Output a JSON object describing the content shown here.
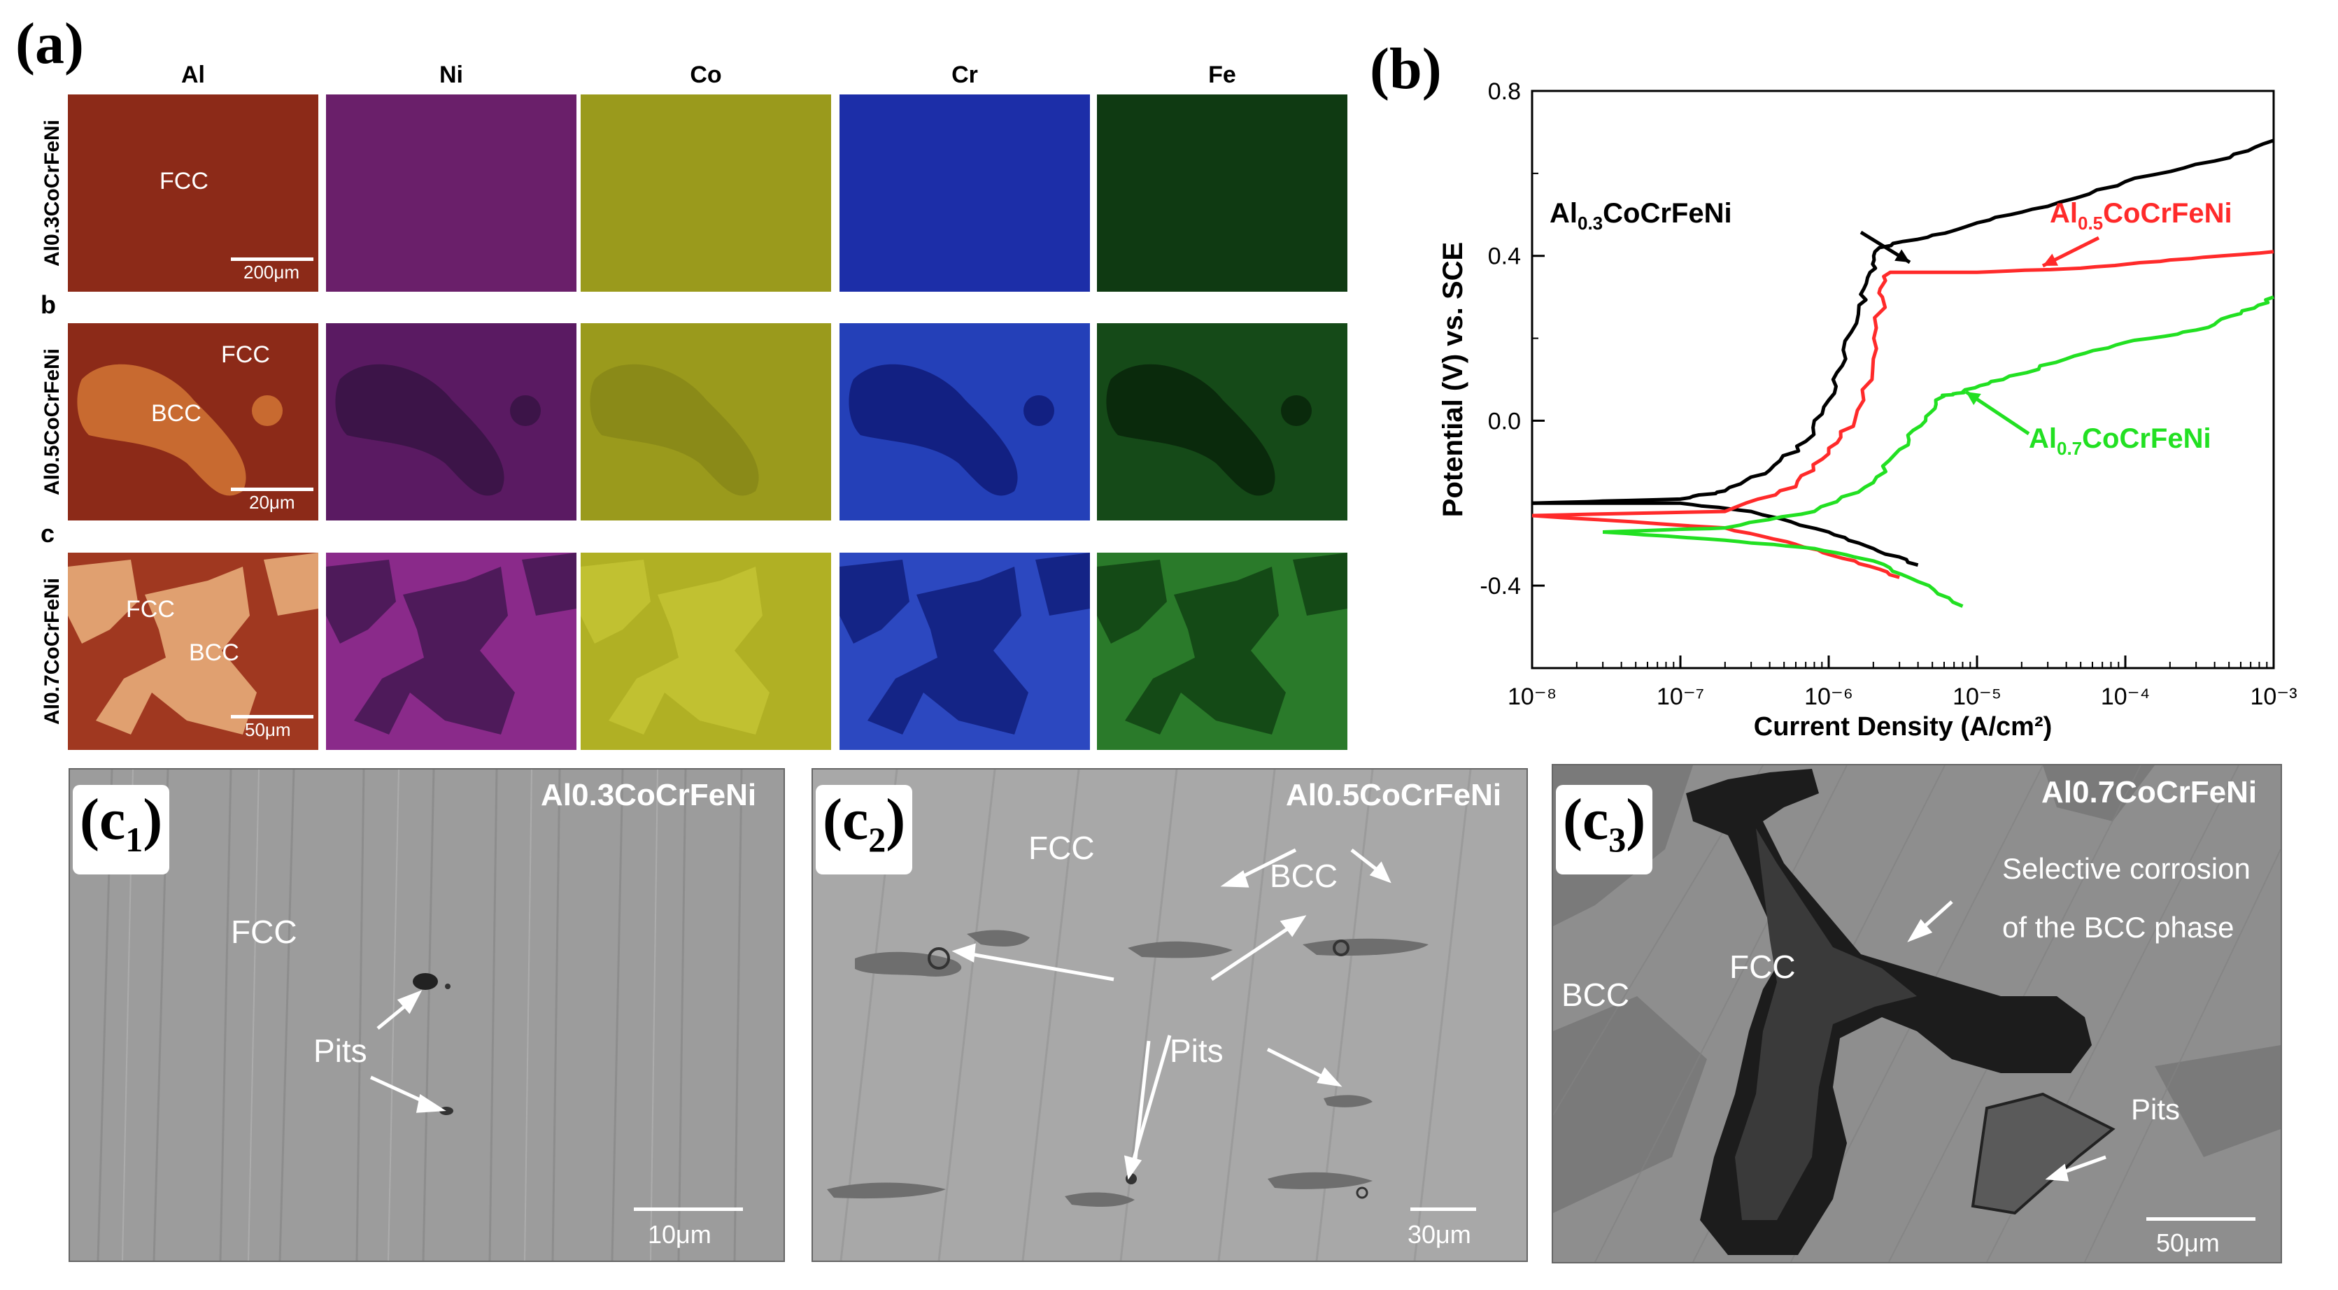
{
  "panel_a": {
    "label": "(a)",
    "elements": [
      "Al",
      "Ni",
      "Co",
      "Cr",
      "Fe"
    ],
    "rows": [
      {
        "alloy": "Al0.3CoCrFeNi",
        "letter": "",
        "phases": [
          "FCC"
        ],
        "scale": "200μm"
      },
      {
        "alloy": "Al0.5CoCrFeNi",
        "letter": "b",
        "phases": [
          "FCC",
          "BCC"
        ],
        "scale": "20μm"
      },
      {
        "alloy": "Al0.7CoCrFeNi",
        "letter": "c",
        "phases": [
          "FCC",
          "BCC"
        ],
        "scale": "50μm"
      }
    ],
    "colors": {
      "Al": "#8c2a18",
      "Ni": "#6a1f6a",
      "Co": "#9a9a1c",
      "Cr": "#1c2ea8",
      "Fe": "#0f3a12",
      "Al_bcc": "#d98a4a",
      "Ni_bcc": "#3c1448",
      "Co_bcc": "#b8b82a",
      "Cr_bcc": "#122082",
      "Fe_bcc": "#2a6a28"
    }
  },
  "panel_b": {
    "label": "(b)",
    "curve_labels": [
      {
        "base": "Al",
        "sub": "0.3",
        "rest": "CoCrFeNi",
        "color": "#000000"
      },
      {
        "base": "Al",
        "sub": "0.5",
        "rest": "CoCrFeNi",
        "color": "#ff2a2a"
      },
      {
        "base": "Al",
        "sub": "0.7",
        "rest": "CoCrFeNi",
        "color": "#22e022"
      }
    ]
  },
  "chart_data": {
    "type": "line",
    "title": "",
    "xlabel": "Current Density (A/cm²)",
    "ylabel": "Potential (V) vs. SCE",
    "xscale": "log",
    "xlim": [
      1e-08,
      0.001
    ],
    "ylim": [
      -0.6,
      0.8
    ],
    "xticks": [
      "10⁻⁸",
      "10⁻⁷",
      "10⁻⁶",
      "10⁻⁵",
      "10⁻⁴",
      "10⁻³"
    ],
    "yticks": [
      "0.8",
      "0.4",
      "0.0",
      "-0.4"
    ],
    "grid": false,
    "series": [
      {
        "name": "Al0.3CoCrFeNi",
        "color": "#000000",
        "anodic": [
          [
            1e-08,
            -0.2
          ],
          [
            1e-07,
            -0.19
          ],
          [
            2e-07,
            -0.17
          ],
          [
            4e-07,
            -0.12
          ],
          [
            7e-07,
            -0.05
          ],
          [
            1e-06,
            0.05
          ],
          [
            1.3e-06,
            0.15
          ],
          [
            1.6e-06,
            0.28
          ],
          [
            1.9e-06,
            0.36
          ],
          [
            2.2e-06,
            0.42
          ],
          [
            5e-06,
            0.45
          ],
          [
            1e-05,
            0.48
          ],
          [
            3e-05,
            0.52
          ],
          [
            0.0001,
            0.58
          ],
          [
            0.0004,
            0.63
          ],
          [
            0.001,
            0.68
          ]
        ],
        "cathodic": [
          [
            1e-08,
            -0.2
          ],
          [
            1e-07,
            -0.2
          ],
          [
            3e-07,
            -0.22
          ],
          [
            1e-06,
            -0.27
          ],
          [
            2e-06,
            -0.31
          ],
          [
            4e-06,
            -0.35
          ]
        ]
      },
      {
        "name": "Al0.5CoCrFeNi",
        "color": "#ff2a2a",
        "anodic": [
          [
            1e-08,
            -0.23
          ],
          [
            2e-07,
            -0.22
          ],
          [
            6e-07,
            -0.16
          ],
          [
            1e-06,
            -0.08
          ],
          [
            1.5e-06,
            0.0
          ],
          [
            2e-06,
            0.15
          ],
          [
            2.3e-06,
            0.3
          ],
          [
            2.6e-06,
            0.36
          ],
          [
            1e-05,
            0.36
          ],
          [
            5e-05,
            0.37
          ],
          [
            0.0002,
            0.39
          ],
          [
            0.001,
            0.41
          ]
        ],
        "cathodic": [
          [
            1e-08,
            -0.23
          ],
          [
            2e-07,
            -0.26
          ],
          [
            6e-07,
            -0.3
          ],
          [
            1.5e-06,
            -0.34
          ],
          [
            3e-06,
            -0.38
          ]
        ]
      },
      {
        "name": "Al0.7CoCrFeNi",
        "color": "#22e022",
        "anodic": [
          [
            3e-08,
            -0.27
          ],
          [
            2e-07,
            -0.26
          ],
          [
            8e-07,
            -0.22
          ],
          [
            2e-06,
            -0.15
          ],
          [
            3e-06,
            -0.07
          ],
          [
            4.5e-06,
            0.0
          ],
          [
            6e-06,
            0.06
          ],
          [
            8e-06,
            0.07
          ],
          [
            1.5e-05,
            0.1
          ],
          [
            4e-05,
            0.15
          ],
          [
            0.0001,
            0.19
          ],
          [
            0.0003,
            0.22
          ],
          [
            0.0006,
            0.26
          ],
          [
            0.001,
            0.3
          ]
        ],
        "cathodic": [
          [
            3e-08,
            -0.27
          ],
          [
            2e-07,
            -0.29
          ],
          [
            8e-07,
            -0.31
          ],
          [
            2e-06,
            -0.34
          ],
          [
            4e-06,
            -0.39
          ],
          [
            8e-06,
            -0.45
          ]
        ]
      }
    ]
  },
  "panel_c": [
    {
      "label_base": "(c",
      "label_sub": "1",
      "label_end": ")",
      "title": "Al0.3CoCrFeNi",
      "texts": [
        "FCC",
        "Pits"
      ],
      "scale": "10μm"
    },
    {
      "label_base": "(c",
      "label_sub": "2",
      "label_end": ")",
      "title": "Al0.5CoCrFeNi",
      "texts": [
        "FCC",
        "BCC",
        "Pits"
      ],
      "scale": "30μm"
    },
    {
      "label_base": "(c",
      "label_sub": "3",
      "label_end": ")",
      "title": "Al0.7CoCrFeNi",
      "texts": [
        "BCC",
        "FCC",
        "Selective corrosion",
        "of the BCC phase",
        "Pits"
      ],
      "scale": "50μm"
    }
  ]
}
